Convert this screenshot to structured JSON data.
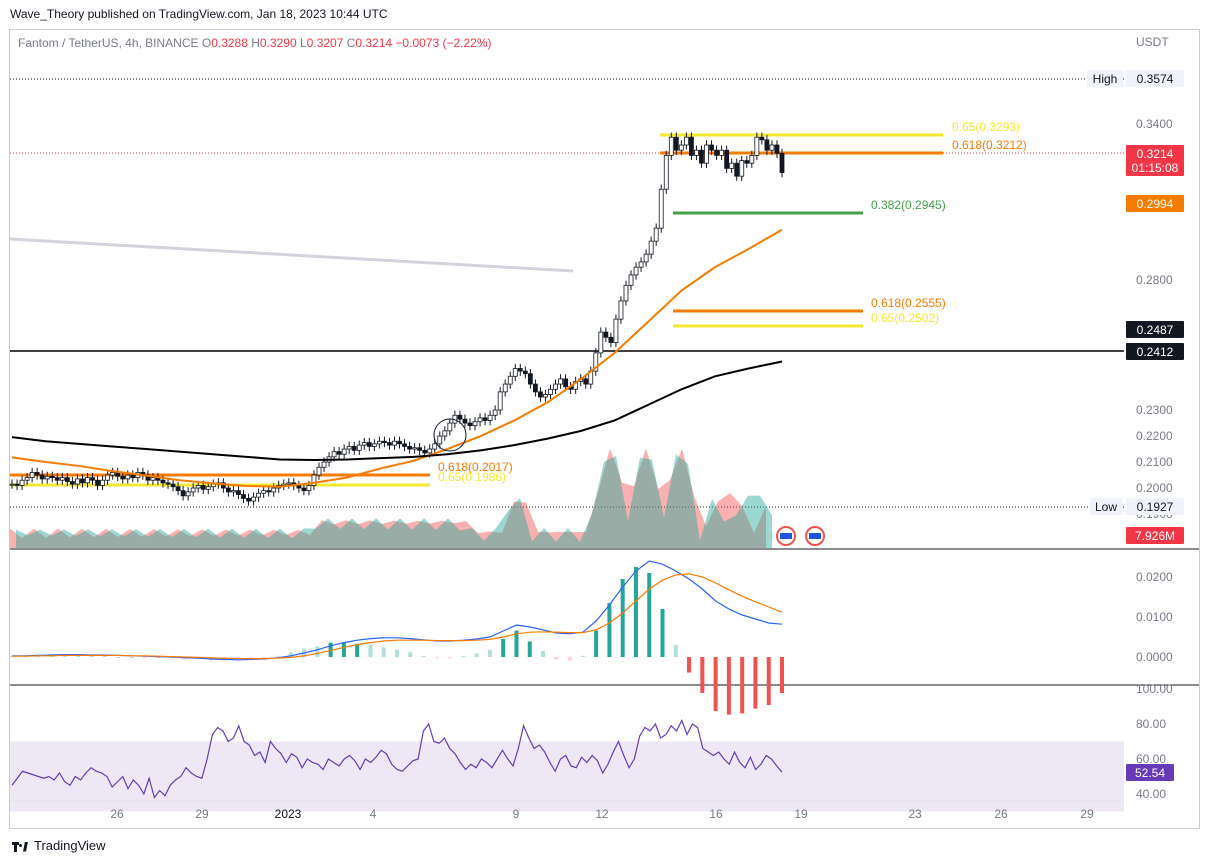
{
  "header": {
    "publisher_line": "Wave_Theory published on TradingView.com, Jan 18, 2023 10:44 UTC"
  },
  "legend": {
    "symbol": "Fantom / TetherUS, 4h, BINANCE",
    "o_label": "O",
    "o_value": "0.3288",
    "h_label": "H",
    "h_value": "0.3290",
    "l_label": "L",
    "l_value": "0.3207",
    "c_label": "C",
    "c_value": "0.3214",
    "change": "−0.0073 (−2.22%)"
  },
  "footer": {
    "brand": "TradingView"
  },
  "colors": {
    "up": "#26a69a",
    "down": "#ef5350",
    "ema_fast": "#f57c00",
    "ema_slow": "#000000",
    "fib_orange": "#f57c00",
    "fib_yellow": "#f2e830",
    "fib_green": "#43a047",
    "macd_line": "#2962ff",
    "macd_signal": "#f57c00",
    "rsi_line": "#673ab7",
    "rsi_band": "#ede7f6",
    "price_tag": "#f23645"
  },
  "chart_data": [
    {
      "type": "candlestick",
      "panel": "price",
      "currency_label": "USDT",
      "y_ticks": [
        "0.3400",
        "0.2800",
        "0.2600",
        "0.2300",
        "0.2200",
        "0.2100",
        "0.2000",
        "0.1900",
        "0.1815"
      ],
      "x_ticks": [
        "26",
        "29",
        "2023",
        "4",
        "9",
        "12",
        "16",
        "19",
        "23",
        "26",
        "29"
      ],
      "high_label": "High",
      "high_value": "0.3574",
      "low_label": "Low",
      "low_value": "0.1927",
      "last_price": "0.3214",
      "countdown": "01:15:08",
      "ema_fast_value": "0.2994",
      "ema_slow_value": "0.2487",
      "horizontal_level": "0.2412",
      "volume_label": "7.926M",
      "fib_labels": [
        {
          "text": "0.65(0.3293)",
          "color": "#f2e830"
        },
        {
          "text": "0.618(0.3212)",
          "color": "#f57c00"
        },
        {
          "text": "0.382(0.2945)",
          "color": "#43a047"
        },
        {
          "text": "0.618(0.2555)",
          "color": "#f57c00"
        },
        {
          "text": "0.65(0.2502)",
          "color": "#f2e830"
        },
        {
          "text": "0.618(0.2017)",
          "color": "#f57c00"
        },
        {
          "text": "0.65(0.1986)",
          "color": "#f2e830"
        }
      ],
      "series": [
        {
          "name": "close",
          "values": [
            0.2015,
            0.201,
            0.203,
            0.204,
            0.206,
            0.205,
            0.2035,
            0.2045,
            0.204,
            0.203,
            0.204,
            0.2025,
            0.2015,
            0.2035,
            0.202,
            0.204,
            0.203,
            0.201,
            0.203,
            0.205,
            0.206,
            0.2045,
            0.2035,
            0.205,
            0.204,
            0.206,
            0.205,
            0.203,
            0.204,
            0.203,
            0.202,
            0.2015,
            0.2005,
            0.199,
            0.197,
            0.1985,
            0.2,
            0.201,
            0.1995,
            0.2005,
            0.2015,
            0.202,
            0.2,
            0.1985,
            0.199,
            0.1975,
            0.196,
            0.195,
            0.1965,
            0.198,
            0.199,
            0.1985,
            0.2,
            0.201,
            0.2015,
            0.202,
            0.201,
            0.2,
            0.199,
            0.201,
            0.205,
            0.208,
            0.21,
            0.212,
            0.214,
            0.213,
            0.215,
            0.216,
            0.2145,
            0.2165,
            0.2175,
            0.216,
            0.217,
            0.218,
            0.2175,
            0.2165,
            0.218,
            0.217,
            0.216,
            0.215,
            0.2155,
            0.2145,
            0.2135,
            0.215,
            0.217,
            0.22,
            0.222,
            0.225,
            0.228,
            0.2265,
            0.225,
            0.224,
            0.2255,
            0.227,
            0.226,
            0.228,
            0.23,
            0.237,
            0.24,
            0.243,
            0.246,
            0.245,
            0.244,
            0.24,
            0.237,
            0.235,
            0.236,
            0.238,
            0.24,
            0.242,
            0.239,
            0.238,
            0.241,
            0.242,
            0.24,
            0.245,
            0.252,
            0.26,
            0.258,
            0.256,
            0.265,
            0.272,
            0.278,
            0.282,
            0.285,
            0.287,
            0.29,
            0.295,
            0.3,
            0.315,
            0.328,
            0.335,
            0.33,
            0.332,
            0.335,
            0.328,
            0.33,
            0.325,
            0.332,
            0.33,
            0.328,
            0.33,
            0.323,
            0.325,
            0.32,
            0.326,
            0.325,
            0.328,
            0.335,
            0.334,
            0.33,
            0.332,
            0.3288,
            0.3214
          ]
        }
      ]
    },
    {
      "type": "line",
      "panel": "macd",
      "y_ticks": [
        "0.0200",
        "0.0100",
        "0.0000"
      ],
      "series": [
        {
          "name": "macd",
          "values": [
            0.0003,
            0.0003,
            0.0004,
            0.0005,
            0.0006,
            0.0006,
            0.0005,
            0.0005,
            0.0004,
            0.0003,
            0.0002,
            0.0001,
            0.0,
            -0.0002,
            -0.0003,
            -0.0005,
            -0.0006,
            -0.0007,
            -0.0006,
            -0.0005,
            -0.0002,
            0.0003,
            0.001,
            0.0018,
            0.0028,
            0.0036,
            0.0042,
            0.0046,
            0.0048,
            0.0048,
            0.0046,
            0.0043,
            0.004,
            0.004,
            0.0042,
            0.0045,
            0.005,
            0.0065,
            0.008,
            0.0075,
            0.0068,
            0.006,
            0.0058,
            0.0062,
            0.009,
            0.013,
            0.0175,
            0.0215,
            0.024,
            0.0232,
            0.0215,
            0.0195,
            0.017,
            0.014,
            0.012,
            0.0105,
            0.0095,
            0.0085,
            0.0082
          ]
        },
        {
          "name": "signal",
          "values": [
            0.0002,
            0.0002,
            0.0003,
            0.0003,
            0.0004,
            0.0004,
            0.0004,
            0.0004,
            0.0004,
            0.0003,
            0.0003,
            0.0002,
            0.0001,
            0.0,
            -0.0001,
            -0.0002,
            -0.0003,
            -0.0004,
            -0.0004,
            -0.0004,
            -0.0003,
            -0.0001,
            0.0003,
            0.0009,
            0.0016,
            0.0024,
            0.0031,
            0.0036,
            0.004,
            0.0042,
            0.0042,
            0.0042,
            0.0041,
            0.0041,
            0.0041,
            0.0042,
            0.0044,
            0.005,
            0.0058,
            0.0062,
            0.0063,
            0.0062,
            0.0061,
            0.0061,
            0.0068,
            0.0085,
            0.011,
            0.014,
            0.017,
            0.0192,
            0.0205,
            0.0208,
            0.02,
            0.0185,
            0.0168,
            0.0152,
            0.0138,
            0.0125,
            0.0112
          ]
        }
      ]
    },
    {
      "type": "line",
      "panel": "rsi",
      "y_ticks": [
        "100.00",
        "80.00",
        "60.00",
        "40.00"
      ],
      "last_value": "52.54",
      "series": [
        {
          "name": "rsi",
          "values": [
            45,
            49,
            53,
            52,
            51,
            50,
            49,
            50,
            48,
            52,
            47,
            45,
            50,
            48,
            52,
            55,
            53,
            52,
            50,
            44,
            47,
            50,
            43,
            48,
            45,
            40,
            49,
            38,
            42,
            39,
            45,
            48,
            50,
            55,
            52,
            50,
            49,
            60,
            74,
            78,
            76,
            70,
            72,
            79,
            70,
            68,
            62,
            64,
            58,
            70,
            66,
            63,
            58,
            63,
            61,
            55,
            60,
            58,
            57,
            54,
            60,
            58,
            56,
            60,
            62,
            59,
            54,
            60,
            58,
            61,
            65,
            63,
            57,
            54,
            53,
            56,
            59,
            60,
            76,
            80,
            70,
            69,
            72,
            66,
            63,
            58,
            54,
            57,
            55,
            60,
            58,
            55,
            60,
            65,
            60,
            56,
            66,
            79,
            72,
            66,
            68,
            64,
            58,
            53,
            60,
            62,
            56,
            55,
            61,
            58,
            62,
            59,
            52,
            57,
            64,
            70,
            62,
            55,
            60,
            73,
            78,
            76,
            80,
            72,
            74,
            79,
            76,
            82,
            74,
            80,
            78,
            66,
            64,
            62,
            64,
            60,
            57,
            64,
            58,
            55,
            61,
            54,
            57,
            62,
            60,
            56,
            52.54
          ]
        }
      ]
    }
  ]
}
